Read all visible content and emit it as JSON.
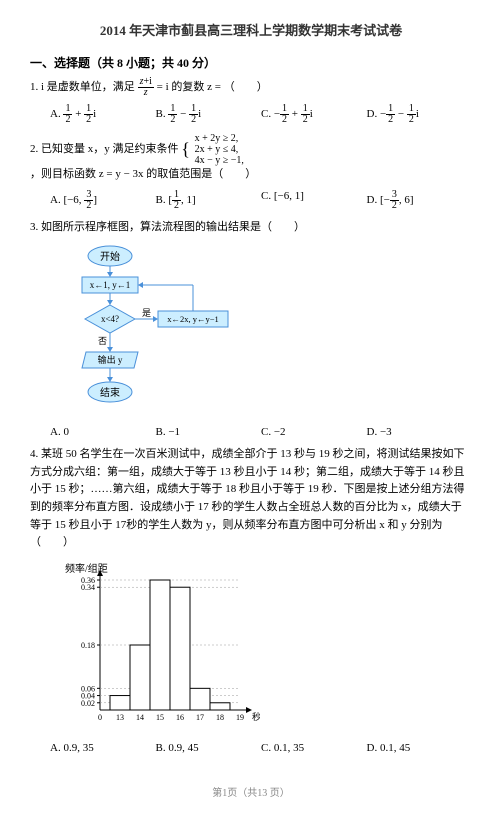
{
  "title": "2014 年天津市蓟县高三理科上学期数学期末考试试卷",
  "section1": "一、选择题（共 8 小题；共 40 分）",
  "q1": {
    "text": "1. i 是虚数单位，满足 ",
    "formula_part": " = i 的复数 z = （　　）",
    "A": "A. ",
    "B": "B. ",
    "C": "C. −",
    "D": "D. −",
    "A_val": " + ",
    "A_end": "i",
    "B_val": " − ",
    "B_end": "i",
    "C_val": " + ",
    "C_end": "i",
    "D_val": " − ",
    "D_end": "i"
  },
  "q2": {
    "text": "2. 已知变量 x，y 满足约束条件 ",
    "text2": "，则目标函数 z = y − 3x 的取值范围是（　　）",
    "c1": "x + 2y ≥ 2,",
    "c2": "2x + y ≤ 4,",
    "c3": "4x − y ≥ −1,",
    "A": "A. [−6, ",
    "A_end": "]",
    "B": "B. [",
    "B_end": ", 1]",
    "C": "C. [−6, 1]",
    "D": "D. [−",
    "D_end": ", 6]"
  },
  "q3": {
    "text": "3. 如图所示程序框图，算法流程图的输出结果是（　　）",
    "A": "A. 0",
    "B": "B. −1",
    "C": "C. −2",
    "D": "D. −3"
  },
  "q4": {
    "text": "4. 某班 50 名学生在一次百米测试中，成绩全部介于 13 秒与 19 秒之间，将测试结果按如下方式分成六组：第一组，成绩大于等于 13 秒且小于 14 秒；第二组，成绩大于等于 14 秒且小于 15 秒；……第六组，成绩大于等于 18 秒且小于等于 19 秒．下图是按上述分组方法得到的频率分布直方图．设成绩小于 17 秒的学生人数占全班总人数的百分比为 x，成绩大于等于 15 秒且小于 17秒的学生人数为 y，则从频率分布直方图中可分析出 x 和 y 分别为（　　）",
    "A": "A. 0.9, 35",
    "B": "B. 0.9, 45",
    "C": "C. 0.1, 35",
    "D": "D. 0.1, 45"
  },
  "flowchart": {
    "start": "开始",
    "init": "x←1, y←1",
    "cond": "x<4?",
    "yes": "是",
    "no": "否",
    "update": "x←2x, y←y−1",
    "output": "输出 y",
    "end": "结束"
  },
  "histogram": {
    "ylabel": "频率/组距",
    "xlabel": "秒",
    "yticks": [
      "0.36",
      "0.34",
      "0.18",
      "0.06",
      "0.04",
      "0.02"
    ],
    "xticks": [
      "0",
      "13",
      "14",
      "15",
      "16",
      "17",
      "18",
      "19"
    ],
    "bars": [
      0.04,
      0.18,
      0.36,
      0.34,
      0.06,
      0.02
    ],
    "bar_color": "#ffffff",
    "bar_border": "#000000",
    "axis_color": "#000000"
  },
  "footer": "第1页（共13 页）"
}
